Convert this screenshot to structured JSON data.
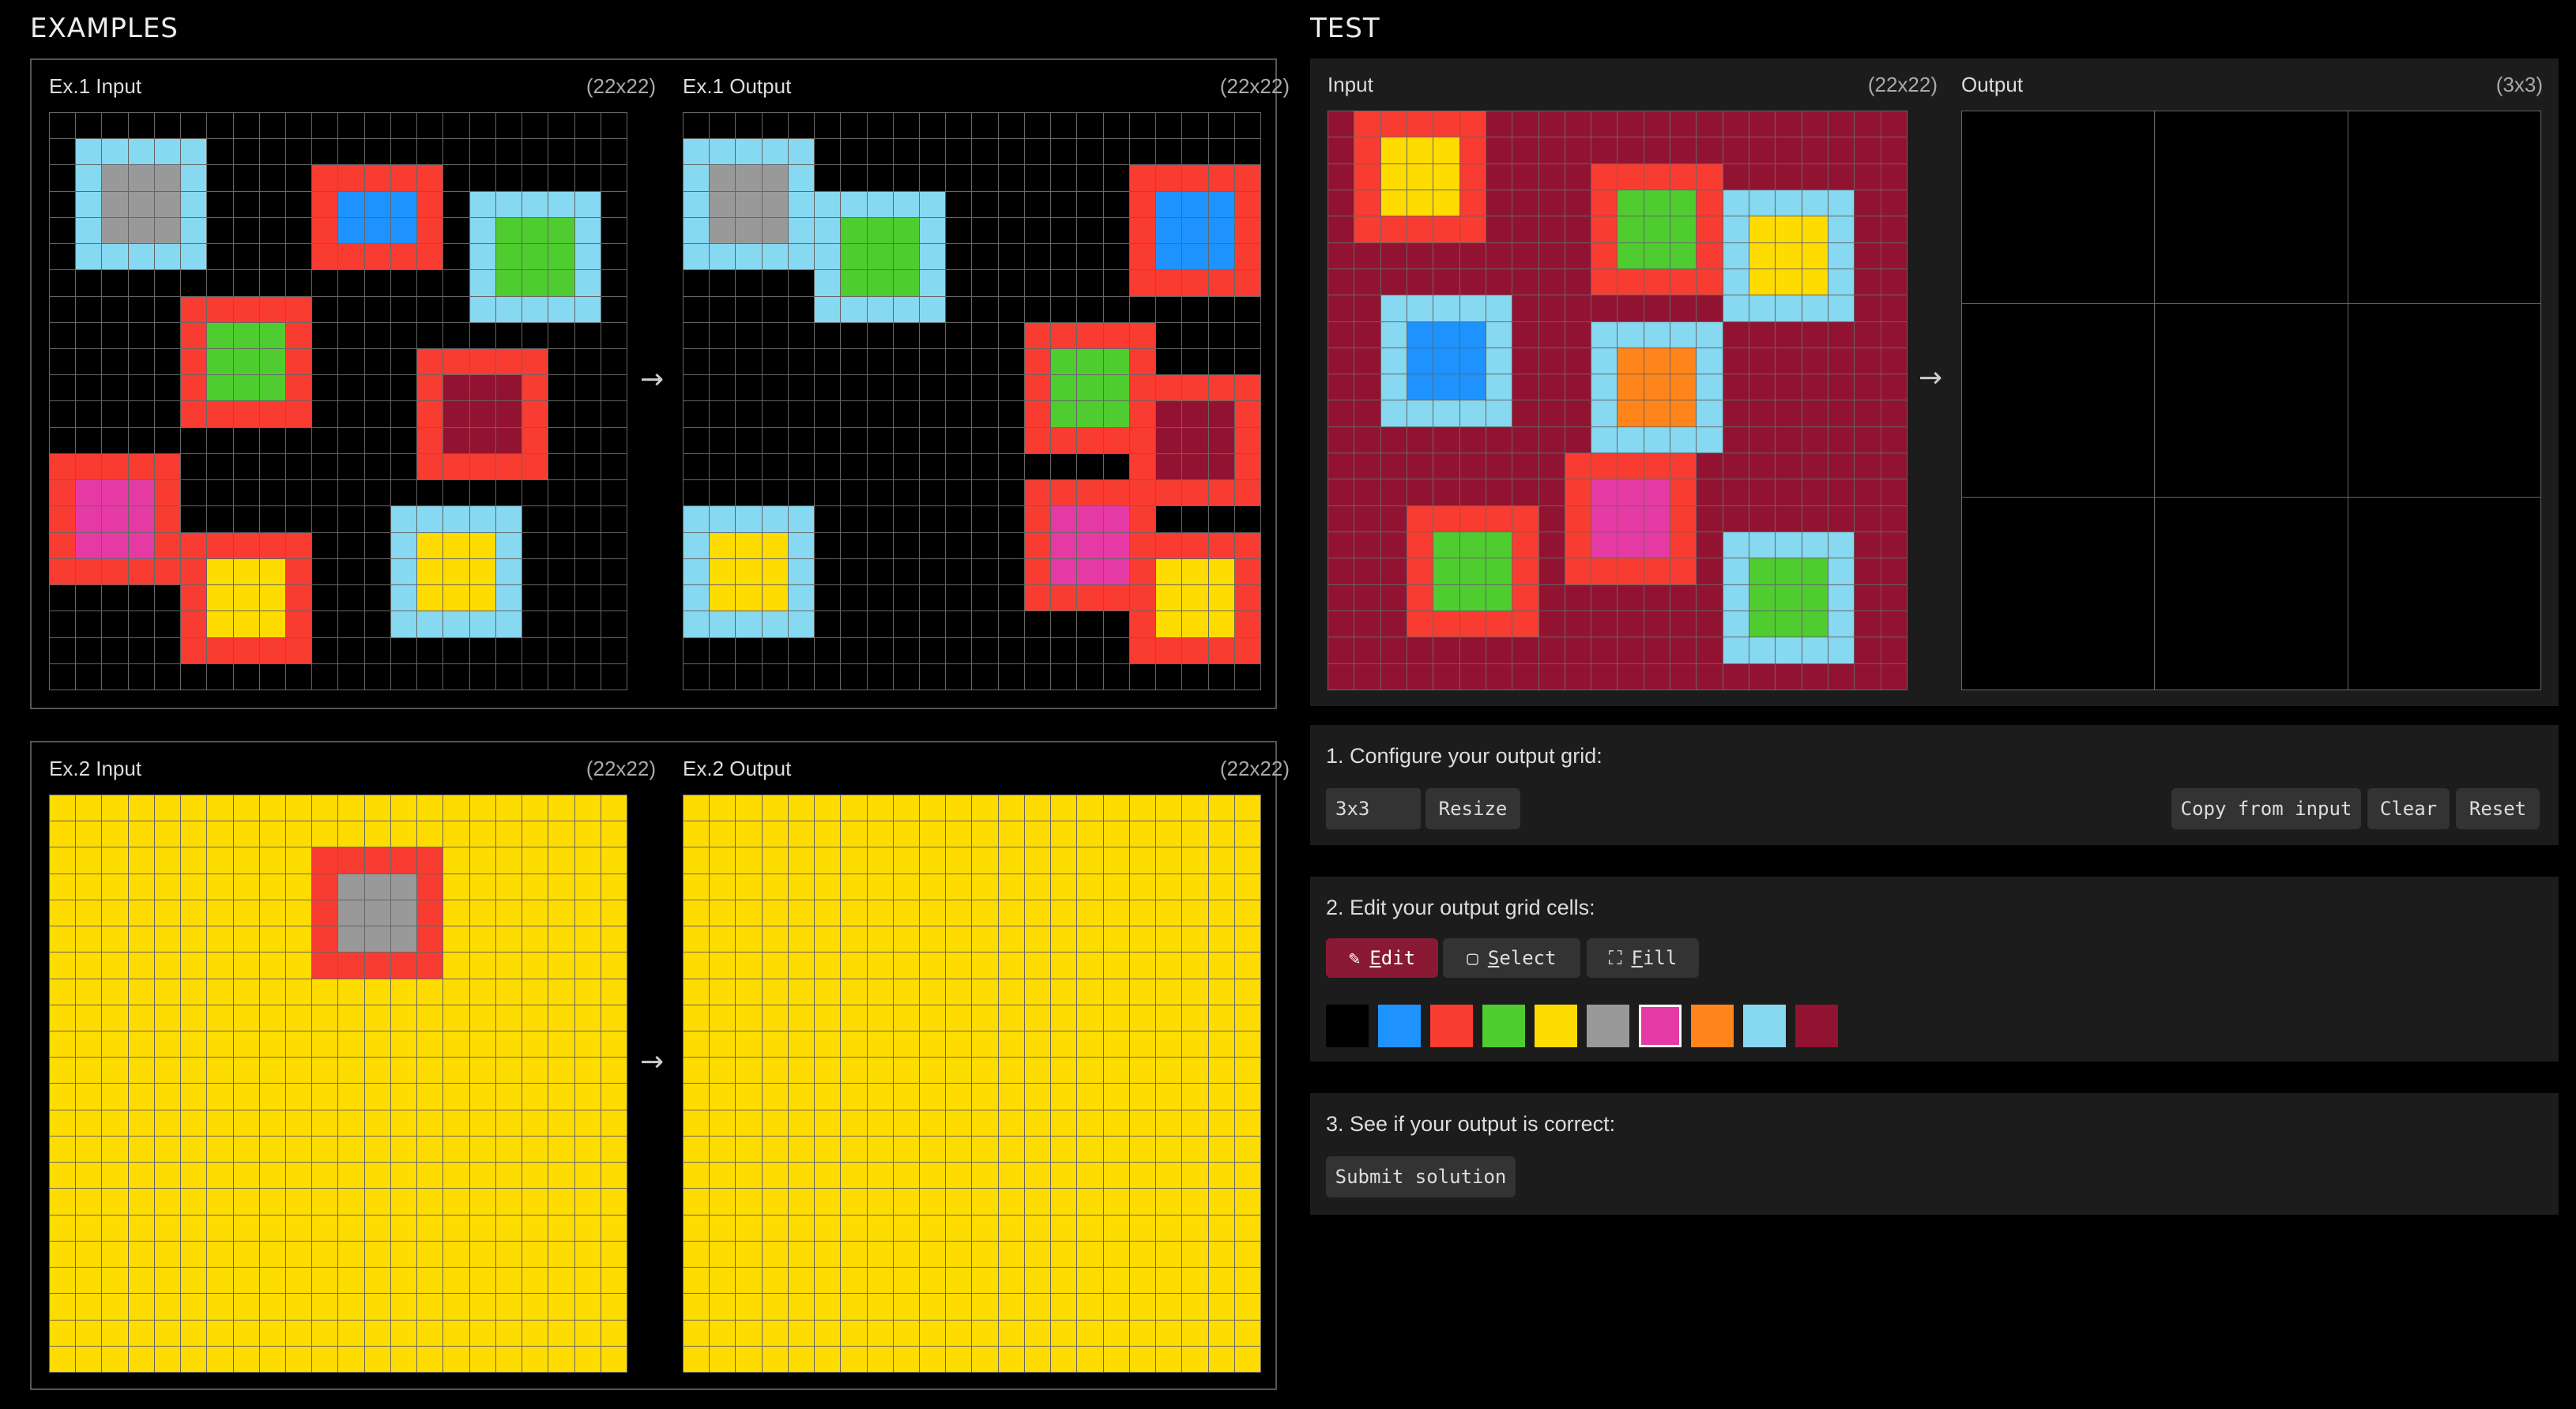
{
  "headings": {
    "examples": "EXAMPLES",
    "test": "TEST"
  },
  "palette": {
    "0": "#000000",
    "1": "#1e93ff",
    "2": "#f93c31",
    "3": "#4fcc30",
    "4": "#ffdc00",
    "5": "#999999",
    "6": "#e53aa3",
    "7": "#ff851b",
    "8": "#87d8f1",
    "9": "#921231"
  },
  "examples": [
    {
      "input_label": "Ex.1 Input",
      "input_size": "(22x22)",
      "output_label": "Ex.1 Output",
      "output_size": "(22x22)",
      "arrow": "→",
      "input_grid": [
        "0000000000000000000000",
        "0888880000000000000000",
        "0855580000222220000000",
        "0855580000211120888880",
        "0855580000211120833380",
        "0888880000222220833380",
        "0000000000000000833380",
        "0000022222000000888880",
        "0000023332000000000000",
        "0000023332000022222000",
        "0000023332000029992000",
        "0000022222000029992000",
        "0000000000000029992000",
        "2222200000000022222000",
        "2666200000000000000000",
        "2666200000000888880000",
        "2666222222000844480000",
        "2222224442000844480000",
        "0000024442000844480000",
        "0000024442000888880000",
        "0000022222000000000000",
        "0000000000000000000000"
      ],
      "output_grid": [
        "0000000000000000000000",
        "8888800000000000000000",
        "8555800000000000022222",
        "8555888888000000021112",
        "8555883338000000021112",
        "8888883338000000021112",
        "0000083338000000022222",
        "0000088888000000000000",
        "0000000000000222220000",
        "0000000000000233320000",
        "0000000000000233322222",
        "0000000000000233329992",
        "0000000000000222229992",
        "0000000000000000029992",
        "0000000000000222222222",
        "8888800000000266620000",
        "8444800000000266622222",
        "8444800000000266624442",
        "8444800000000222224442",
        "8888800000000000024442",
        "0000000000000000022222",
        "0000000000000000000000"
      ]
    },
    {
      "input_label": "Ex.2 Input",
      "input_size": "(22x22)",
      "output_label": "Ex.2 Output",
      "output_size": "(22x22)",
      "arrow": "→",
      "input_grid": [
        "4444444444444444444444",
        "4444444444444444444444",
        "4444444444222224444444",
        "4444444444255524444444",
        "4444444444255524444444",
        "4444444444255524444444",
        "4444444444222224444444",
        "4444444444444444444444",
        "4444444444444444444444",
        "4444444444444444444444",
        "4444444444444444444444",
        "4444444444444444444444",
        "4444444444444444444444",
        "4444444444444444444444",
        "4444444444444444444444",
        "4444444444444444444444",
        "4444444444444444444444",
        "4444444444444444444444",
        "4444444444444444444444",
        "4444444444444444444444",
        "4444444444444444444444",
        "4444444444444444444444"
      ],
      "output_grid": [
        "4444444444444444444444",
        "4444444444444444444444",
        "4444444444444444444444",
        "4444444444444444444444",
        "4444444444444444444444",
        "4444444444444444444444",
        "4444444444444444444444",
        "4444444444444444444444",
        "4444444444444444444444",
        "4444444444444444444444",
        "4444444444444444444444",
        "4444444444444444444444",
        "4444444444444444444444",
        "4444444444444444444444",
        "4444444444444444444444",
        "4444444444444444444444",
        "4444444444444444444444",
        "4444444444444444444444",
        "4444444444444444444444",
        "4444444444444444444444",
        "4444444444444444444444",
        "4444444444444444444444"
      ]
    }
  ],
  "test": {
    "input_label": "Input",
    "input_size": "(22x22)",
    "output_label": "Output",
    "output_size": "(3x3)",
    "arrow": "→",
    "input_grid": [
      "9222229999999999999999",
      "9244429999999999999999",
      "9244429999222229999999",
      "9244429999233328888899",
      "9222229999233328444899",
      "9999999999233328444899",
      "9999999999222228444899",
      "9988888999999998888899",
      "9981118999888889999999",
      "9981118999877789999999",
      "9981118999877789999999",
      "9988888999877789999999",
      "9999999999888889999999",
      "9999999992222299999999",
      "9999999992666299999999",
      "9992222292666299999999",
      "9992333292666298888899",
      "9992333292222298333899",
      "9992333299999998333899",
      "9992222299999998333899",
      "9999999999999998888899",
      "9999999999999999999999"
    ],
    "output_grid": [
      "000",
      "000",
      "000"
    ]
  },
  "steps": {
    "configure": {
      "title": "1. Configure your output grid:",
      "size_value": "3x3",
      "resize": "Resize",
      "copy": "Copy from input",
      "clear": "Clear",
      "reset": "Reset"
    },
    "edit": {
      "title": "2. Edit your output grid cells:",
      "tools": [
        {
          "icon": "✎",
          "first": "E",
          "rest": "dit",
          "active": true
        },
        {
          "icon": "▢",
          "first": "S",
          "rest": "elect",
          "active": false
        },
        {
          "icon": "⛶",
          "first": "F",
          "rest": "ill",
          "active": false
        }
      ],
      "swatches": [
        "#000000",
        "#1e93ff",
        "#f93c31",
        "#4fcc30",
        "#ffdc00",
        "#999999",
        "#e53aa3",
        "#ff851b",
        "#87d8f1",
        "#921231"
      ],
      "selected_swatch": 6
    },
    "submit": {
      "title": "3. See if your output is correct:",
      "submit": "Submit solution"
    }
  }
}
